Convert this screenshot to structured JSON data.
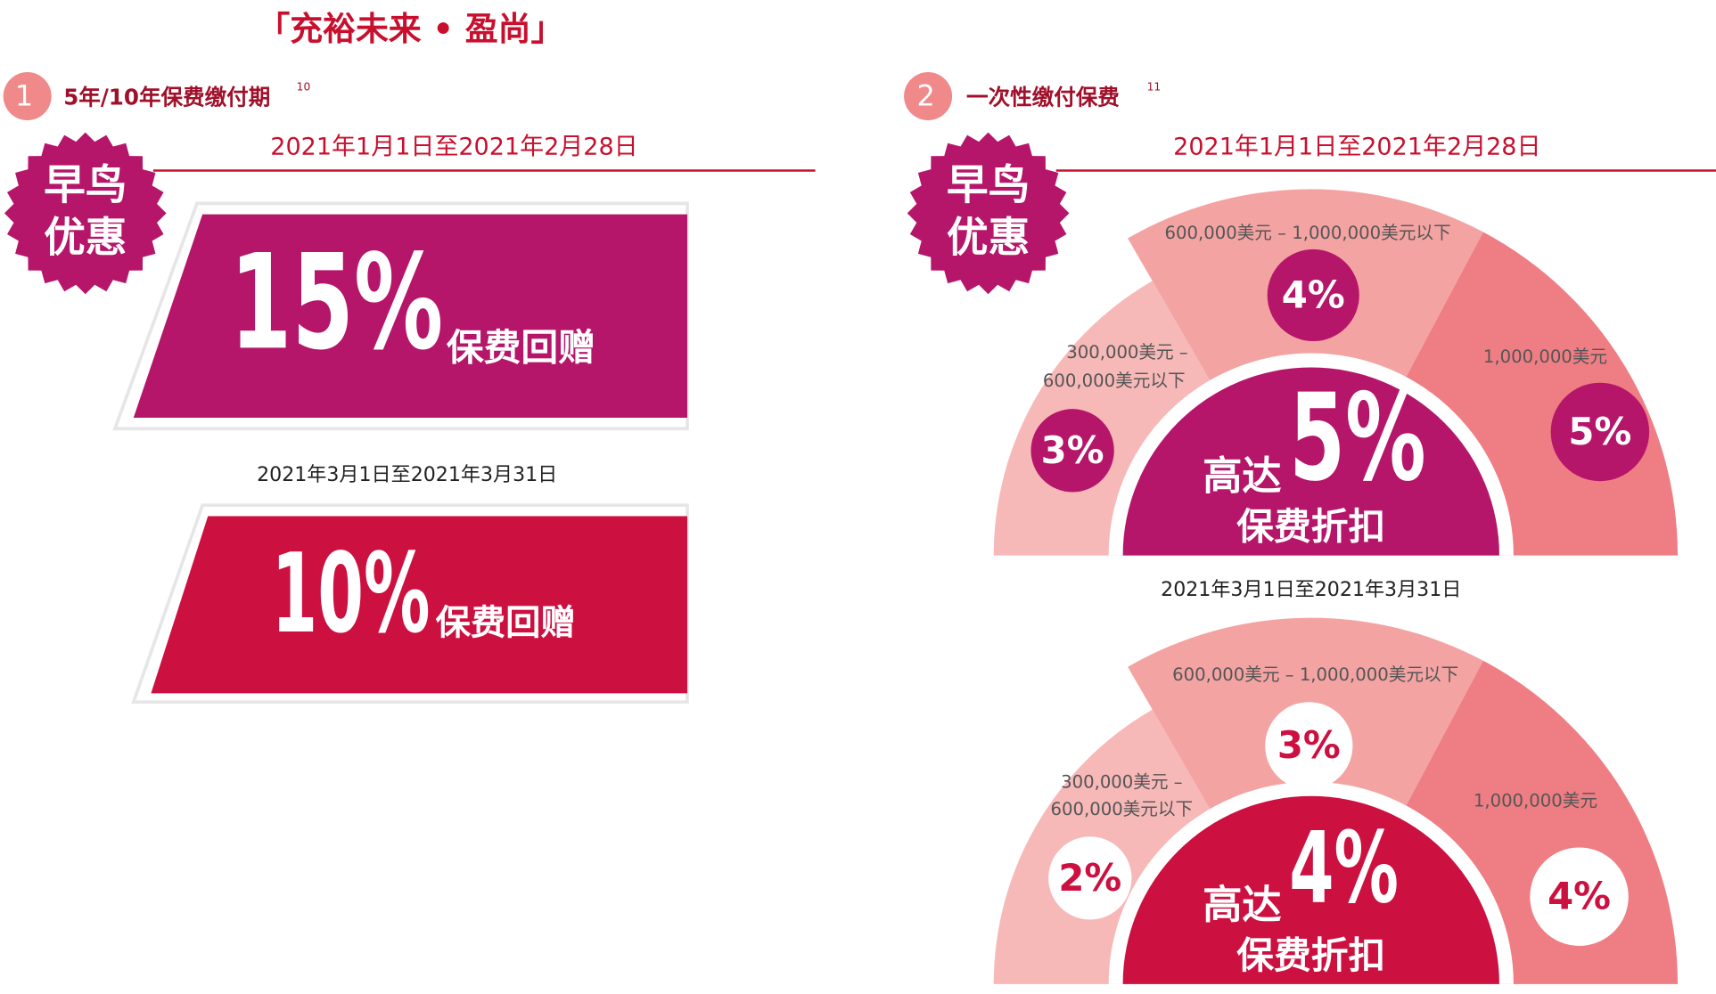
{
  "header": {
    "title": "「充裕未来 • 盈尚」"
  },
  "sections": [
    {
      "number": "1",
      "title": "5年/10年保费缴付期",
      "note": "10",
      "badge": [
        "早鸟",
        "优惠"
      ],
      "offers": [
        {
          "period": "2021年1月1日至2021年2月28日",
          "rate": "15%",
          "label": "保费回赠"
        },
        {
          "period": "2021年3月1日至2021年3月31日",
          "rate": "10%",
          "label": "保费回赠"
        }
      ]
    },
    {
      "number": "2",
      "title": "一次性缴付保费",
      "note": "11",
      "badge": [
        "早鸟",
        "优惠"
      ],
      "offers": [
        {
          "period": "2021年1月1日至2021年2月28日",
          "tiers": [
            {
              "label": [
                "300,000美元 –",
                "600,000美元以下"
              ],
              "rate": "3%"
            },
            {
              "label": [
                "600,000美元 – 1,000,000美元以下"
              ],
              "rate": "4%"
            },
            {
              "label": [
                "1,000,000美元"
              ],
              "rate": "5%"
            }
          ],
          "center": {
            "prefix": "高达",
            "rate": "5%",
            "label": "保费折扣"
          }
        },
        {
          "period": "2021年3月1日至2021年3月31日",
          "tiers": [
            {
              "label": [
                "300,000美元 –",
                "600,000美元以下"
              ],
              "rate": "2%"
            },
            {
              "label": [
                "600,000美元 – 1,000,000美元以下"
              ],
              "rate": "3%"
            },
            {
              "label": [
                "1,000,000美元"
              ],
              "rate": "4%"
            }
          ],
          "center": {
            "prefix": "高达",
            "rate": "4%",
            "label": "保费折扣"
          }
        }
      ]
    }
  ]
}
